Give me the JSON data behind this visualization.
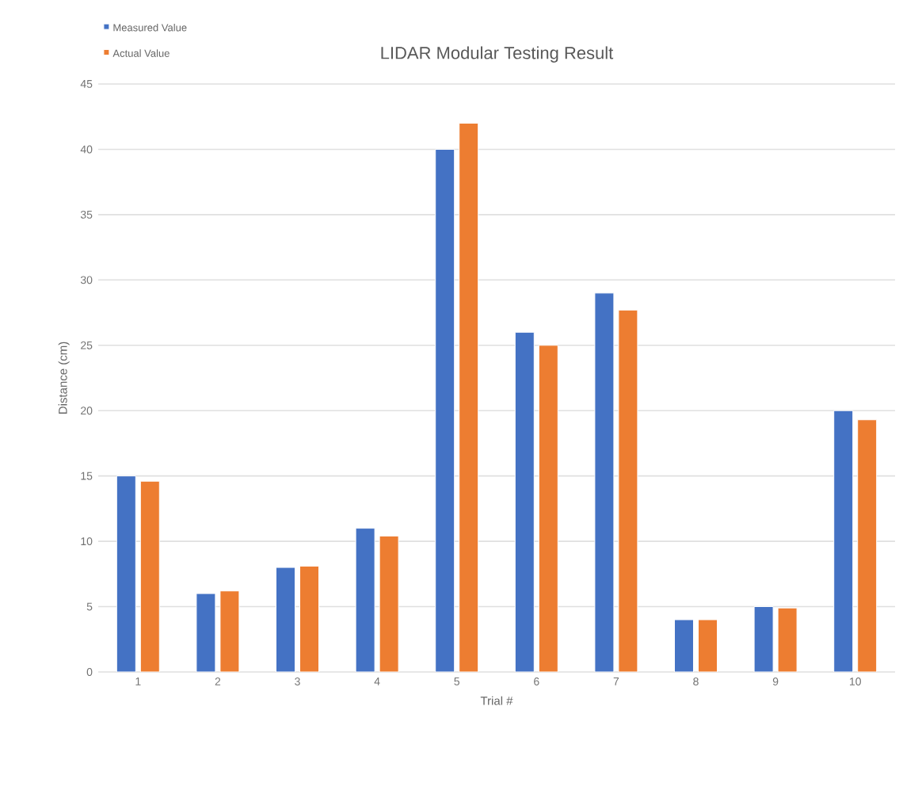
{
  "chart_data": {
    "type": "bar",
    "title": "LIDAR Modular Testing Result",
    "xlabel": "Trial #",
    "ylabel": "Distance (cm)",
    "categories": [
      "1",
      "2",
      "3",
      "4",
      "5",
      "6",
      "7",
      "8",
      "9",
      "10"
    ],
    "series": [
      {
        "name": "Measured Value",
        "color": "#4472c4",
        "values": [
          15,
          6,
          8,
          11,
          40,
          26,
          29,
          4,
          5,
          20
        ]
      },
      {
        "name": "Actual Value",
        "color": "#ed7d31",
        "values": [
          14.6,
          6.2,
          8.1,
          10.4,
          42,
          25,
          27.7,
          4,
          4.9,
          19.3
        ]
      }
    ],
    "ylim": [
      0,
      45
    ],
    "yticks": [
      0,
      5,
      10,
      15,
      20,
      25,
      30,
      35,
      40,
      45
    ],
    "grid": "y",
    "legend": "top left"
  }
}
